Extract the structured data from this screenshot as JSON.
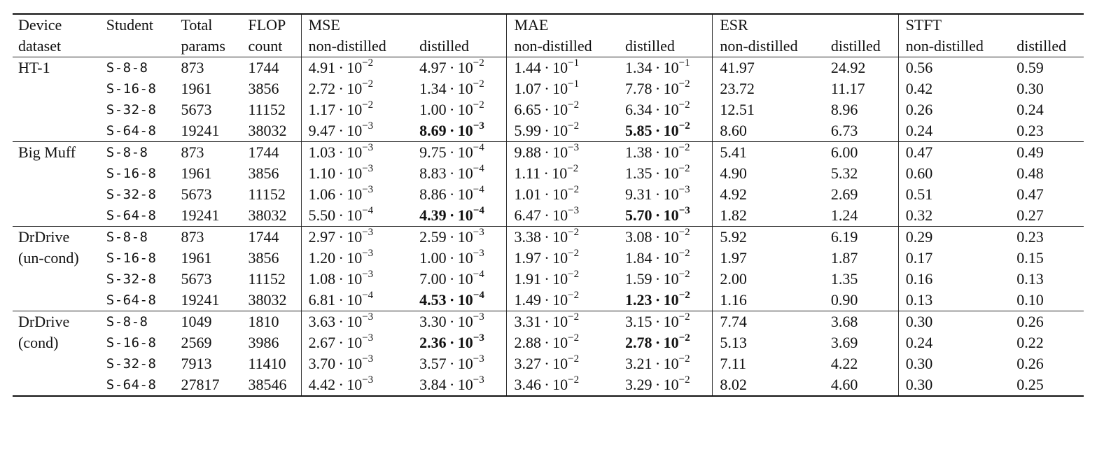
{
  "header": {
    "device": [
      "Device",
      "dataset"
    ],
    "student": "Student",
    "params": [
      "Total",
      "params"
    ],
    "flop": [
      "FLOP",
      "count"
    ],
    "metrics": [
      "MSE",
      "MAE",
      "ESR",
      "STFT"
    ],
    "non_distilled": "non-distilled",
    "distilled": "distilled"
  },
  "groups": [
    {
      "device": [
        "HT-1"
      ],
      "rows": [
        {
          "student": "S-8-8",
          "params": "873",
          "flop": "1744",
          "mse_nd": {
            "m": "4.91",
            "e": "−2"
          },
          "mse_d": {
            "m": "4.97",
            "e": "−2"
          },
          "mae_nd": {
            "m": "1.44",
            "e": "−1"
          },
          "mae_d": {
            "m": "1.34",
            "e": "−1"
          },
          "esr_nd": "41.97",
          "esr_d": "24.92",
          "stft_nd": "0.56",
          "stft_d": "0.59"
        },
        {
          "student": "S-16-8",
          "params": "1961",
          "flop": "3856",
          "mse_nd": {
            "m": "2.72",
            "e": "−2"
          },
          "mse_d": {
            "m": "1.34",
            "e": "−2"
          },
          "mae_nd": {
            "m": "1.07",
            "e": "−1"
          },
          "mae_d": {
            "m": "7.78",
            "e": "−2"
          },
          "esr_nd": "23.72",
          "esr_d": "11.17",
          "stft_nd": "0.42",
          "stft_d": "0.30"
        },
        {
          "student": "S-32-8",
          "params": "5673",
          "flop": "11152",
          "mse_nd": {
            "m": "1.17",
            "e": "−2"
          },
          "mse_d": {
            "m": "1.00",
            "e": "−2"
          },
          "mae_nd": {
            "m": "6.65",
            "e": "−2"
          },
          "mae_d": {
            "m": "6.34",
            "e": "−2"
          },
          "esr_nd": "12.51",
          "esr_d": "8.96",
          "stft_nd": "0.26",
          "stft_d": "0.24"
        },
        {
          "student": "S-64-8",
          "params": "19241",
          "flop": "38032",
          "mse_nd": {
            "m": "9.47",
            "e": "−3"
          },
          "mse_d": {
            "m": "8.69",
            "e": "−3",
            "bold": true
          },
          "mae_nd": {
            "m": "5.99",
            "e": "−2"
          },
          "mae_d": {
            "m": "5.85",
            "e": "−2",
            "bold": true
          },
          "esr_nd": "8.60",
          "esr_d": "6.73",
          "esr_d_bold": true,
          "stft_nd": "0.24",
          "stft_d": "0.23",
          "stft_d_bold": true
        }
      ]
    },
    {
      "device": [
        "Big Muff"
      ],
      "rows": [
        {
          "student": "S-8-8",
          "params": "873",
          "flop": "1744",
          "mse_nd": {
            "m": "1.03",
            "e": "−3"
          },
          "mse_d": {
            "m": "9.75",
            "e": "−4"
          },
          "mae_nd": {
            "m": "9.88",
            "e": "−3"
          },
          "mae_d": {
            "m": "1.38",
            "e": "−2"
          },
          "esr_nd": "5.41",
          "esr_d": "6.00",
          "stft_nd": "0.47",
          "stft_d": "0.49"
        },
        {
          "student": "S-16-8",
          "params": "1961",
          "flop": "3856",
          "mse_nd": {
            "m": "1.10",
            "e": "−3"
          },
          "mse_d": {
            "m": "8.83",
            "e": "−4"
          },
          "mae_nd": {
            "m": "1.11",
            "e": "−2"
          },
          "mae_d": {
            "m": "1.35",
            "e": "−2"
          },
          "esr_nd": "4.90",
          "esr_d": "5.32",
          "stft_nd": "0.60",
          "stft_d": "0.48"
        },
        {
          "student": "S-32-8",
          "params": "5673",
          "flop": "11152",
          "mse_nd": {
            "m": "1.06",
            "e": "−3"
          },
          "mse_d": {
            "m": "8.86",
            "e": "−4"
          },
          "mae_nd": {
            "m": "1.01",
            "e": "−2"
          },
          "mae_d": {
            "m": "9.31",
            "e": "−3"
          },
          "esr_nd": "4.92",
          "esr_d": "2.69",
          "stft_nd": "0.51",
          "stft_d": "0.47"
        },
        {
          "student": "S-64-8",
          "params": "19241",
          "flop": "38032",
          "mse_nd": {
            "m": "5.50",
            "e": "−4"
          },
          "mse_d": {
            "m": "4.39",
            "e": "−4",
            "bold": true
          },
          "mae_nd": {
            "m": "6.47",
            "e": "−3"
          },
          "mae_d": {
            "m": "5.70",
            "e": "−3",
            "bold": true
          },
          "esr_nd": "1.82",
          "esr_d": "1.24",
          "esr_d_bold": true,
          "stft_nd": "0.32",
          "stft_d": "0.27",
          "stft_d_bold": true
        }
      ]
    },
    {
      "device": [
        "DrDrive",
        "(un-cond)"
      ],
      "rows": [
        {
          "student": "S-8-8",
          "params": "873",
          "flop": "1744",
          "mse_nd": {
            "m": "2.97",
            "e": "−3"
          },
          "mse_d": {
            "m": "2.59",
            "e": "−3"
          },
          "mae_nd": {
            "m": "3.38",
            "e": "−2"
          },
          "mae_d": {
            "m": "3.08",
            "e": "−2"
          },
          "esr_nd": "5.92",
          "esr_d": "6.19",
          "stft_nd": "0.29",
          "stft_d": "0.23"
        },
        {
          "student": "S-16-8",
          "params": "1961",
          "flop": "3856",
          "mse_nd": {
            "m": "1.20",
            "e": "−3"
          },
          "mse_d": {
            "m": "1.00",
            "e": "−3"
          },
          "mae_nd": {
            "m": "1.97",
            "e": "−2"
          },
          "mae_d": {
            "m": "1.84",
            "e": "−2"
          },
          "esr_nd": "1.97",
          "esr_d": "1.87",
          "stft_nd": "0.17",
          "stft_d": "0.15"
        },
        {
          "student": "S-32-8",
          "params": "5673",
          "flop": "11152",
          "mse_nd": {
            "m": "1.08",
            "e": "−3"
          },
          "mse_d": {
            "m": "7.00",
            "e": "−4"
          },
          "mae_nd": {
            "m": "1.91",
            "e": "−2"
          },
          "mae_d": {
            "m": "1.59",
            "e": "−2"
          },
          "esr_nd": "2.00",
          "esr_d": "1.35",
          "stft_nd": "0.16",
          "stft_d": "0.13"
        },
        {
          "student": "S-64-8",
          "params": "19241",
          "flop": "38032",
          "mse_nd": {
            "m": "6.81",
            "e": "−4"
          },
          "mse_d": {
            "m": "4.53",
            "e": "−4",
            "bold": true
          },
          "mae_nd": {
            "m": "1.49",
            "e": "−2"
          },
          "mae_d": {
            "m": "1.23",
            "e": "−2",
            "bold": true
          },
          "esr_nd": "1.16",
          "esr_d": "0.90",
          "esr_d_bold": true,
          "stft_nd": "0.13",
          "stft_d": "0.10",
          "stft_d_bold": true
        }
      ]
    },
    {
      "device": [
        "DrDrive",
        "(cond)"
      ],
      "rows": [
        {
          "student": "S-8-8",
          "params": "1049",
          "flop": "1810",
          "mse_nd": {
            "m": "3.63",
            "e": "−3"
          },
          "mse_d": {
            "m": "3.30",
            "e": "−3"
          },
          "mae_nd": {
            "m": "3.31",
            "e": "−2"
          },
          "mae_d": {
            "m": "3.15",
            "e": "−2"
          },
          "esr_nd": "7.74",
          "esr_d": "3.68",
          "esr_d_bold": true,
          "stft_nd": "0.30",
          "stft_d": "0.26"
        },
        {
          "student": "S-16-8",
          "params": "2569",
          "flop": "3986",
          "mse_nd": {
            "m": "2.67",
            "e": "−3"
          },
          "mse_d": {
            "m": "2.36",
            "e": "−3",
            "bold": true
          },
          "mae_nd": {
            "m": "2.88",
            "e": "−2"
          },
          "mae_d": {
            "m": "2.78",
            "e": "−2",
            "bold": true
          },
          "esr_nd": "5.13",
          "esr_d": "3.69",
          "stft_nd": "0.24",
          "stft_d": "0.22",
          "stft_d_bold": true
        },
        {
          "student": "S-32-8",
          "params": "7913",
          "flop": "11410",
          "mse_nd": {
            "m": "3.70",
            "e": "−3"
          },
          "mse_d": {
            "m": "3.57",
            "e": "−3"
          },
          "mae_nd": {
            "m": "3.27",
            "e": "−2"
          },
          "mae_d": {
            "m": "3.21",
            "e": "−2"
          },
          "esr_nd": "7.11",
          "esr_d": "4.22",
          "stft_nd": "0.30",
          "stft_d": "0.26"
        },
        {
          "student": "S-64-8",
          "params": "27817",
          "flop": "38546",
          "mse_nd": {
            "m": "4.42",
            "e": "−3"
          },
          "mse_d": {
            "m": "3.84",
            "e": "−3"
          },
          "mae_nd": {
            "m": "3.46",
            "e": "−2"
          },
          "mae_d": {
            "m": "3.29",
            "e": "−2"
          },
          "esr_nd": "8.02",
          "esr_d": "4.60",
          "stft_nd": "0.30",
          "stft_d": "0.25"
        }
      ]
    }
  ]
}
